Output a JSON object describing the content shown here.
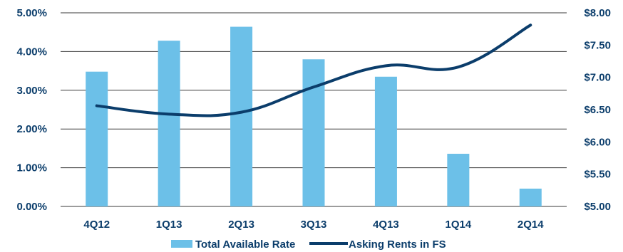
{
  "chart_data": {
    "type": "bar",
    "categories": [
      "4Q12",
      "1Q13",
      "2Q13",
      "3Q13",
      "4Q13",
      "1Q14",
      "2Q14"
    ],
    "series": [
      {
        "name": "Total Available Rate",
        "chart": "bar",
        "axis": "left",
        "values": [
          3.48,
          4.28,
          4.64,
          3.8,
          3.35,
          1.36,
          0.46
        ]
      },
      {
        "name": "Asking Rents in FS",
        "chart": "line",
        "axis": "right",
        "smooth": true,
        "values": [
          6.56,
          6.43,
          6.46,
          6.85,
          7.18,
          7.16,
          7.81
        ]
      }
    ],
    "left_axis": {
      "ylim": [
        0,
        5
      ],
      "ticks": [
        0,
        1,
        2,
        3,
        4,
        5
      ],
      "tick_labels": [
        "0.00%",
        "1.00%",
        "2.00%",
        "3.00%",
        "4.00%",
        "5.00%"
      ]
    },
    "right_axis": {
      "ylim": [
        5,
        8
      ],
      "ticks": [
        5,
        5.5,
        6,
        6.5,
        7,
        7.5,
        8
      ],
      "tick_labels": [
        "$5.00",
        "$5.50",
        "$6.00",
        "$6.50",
        "$7.00",
        "$7.50",
        "$8.00"
      ]
    },
    "grid": true,
    "legend_position": "bottom",
    "title": "",
    "xlabel": "",
    "ylabel": ""
  },
  "colors": {
    "bar": "#6cc0e8",
    "line": "#0b3d6b",
    "text": "#0b3d6b",
    "grid": "#3a3a3a"
  }
}
